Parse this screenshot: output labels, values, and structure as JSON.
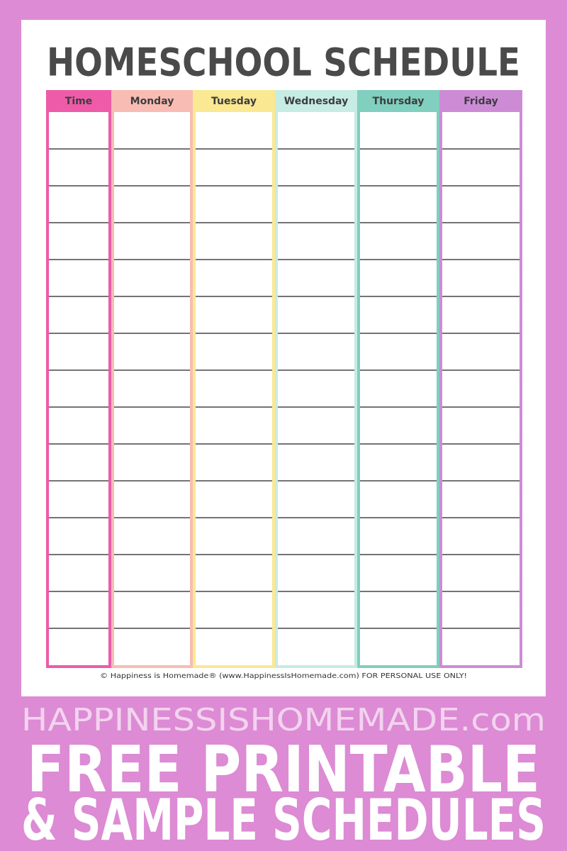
{
  "header": {
    "title": "HOMESCHOOL SCHEDULE"
  },
  "table": {
    "columns": [
      "Time",
      "Monday",
      "Tuesday",
      "Wednesday",
      "Thursday",
      "Friday"
    ]
  },
  "footer": {
    "copyright": "© Happiness is Homemade® (www.HappinessIsHomemade.com)  FOR PERSONAL USE ONLY!"
  },
  "banner": {
    "site": "HAPPINESSISHOMEMADE.com",
    "line1": "FREE PRINTABLE",
    "line2": "& SAMPLE SCHEDULES"
  }
}
